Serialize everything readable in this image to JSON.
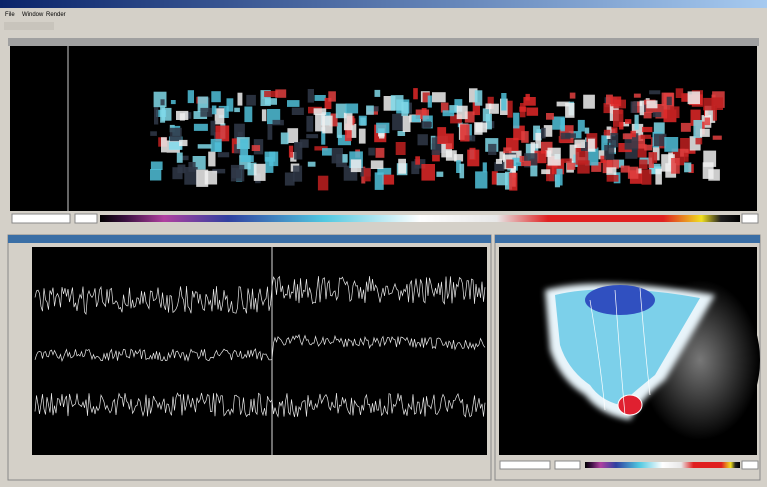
{
  "menu": [
    "File",
    "Window",
    "Render"
  ]
}
